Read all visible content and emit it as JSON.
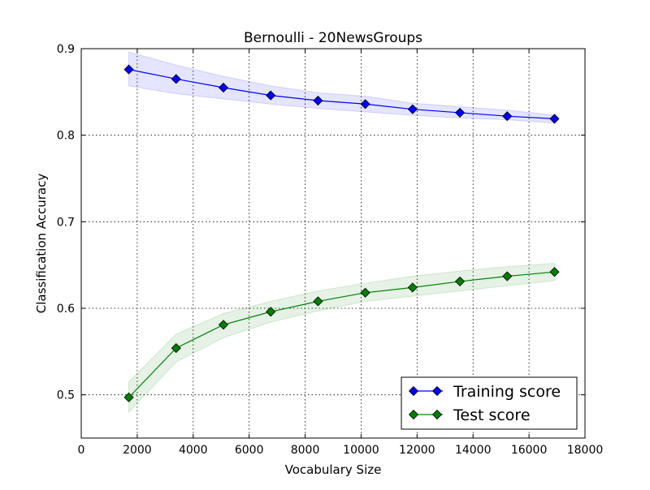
{
  "chart_data": {
    "type": "line",
    "title": "Bernoulli - 20NewsGroups",
    "xlabel": "Vocabulary Size",
    "ylabel": "Classification Accuracy",
    "xlim": [
      0,
      18000
    ],
    "ylim": [
      0.45,
      0.9
    ],
    "xticks": [
      0,
      2000,
      4000,
      6000,
      8000,
      10000,
      12000,
      14000,
      16000,
      18000
    ],
    "yticks": [
      0.5,
      0.6,
      0.7,
      0.8,
      0.9
    ],
    "ytick_labels": [
      "0.5",
      "0.6",
      "0.7",
      "0.8",
      "0.9"
    ],
    "grid": true,
    "legend_position": "bottom-right",
    "x": [
      1700,
      3390,
      5080,
      6770,
      8460,
      10150,
      11840,
      13530,
      15220,
      16910
    ],
    "series": [
      {
        "name": "Training score",
        "color": "#0000ff",
        "band_color": "#0000ff",
        "marker": "diamond",
        "values": [
          0.876,
          0.865,
          0.855,
          0.846,
          0.84,
          0.836,
          0.83,
          0.826,
          0.822,
          0.819
        ],
        "upper": [
          0.896,
          0.881,
          0.868,
          0.857,
          0.849,
          0.845,
          0.837,
          0.833,
          0.829,
          0.823
        ],
        "lower": [
          0.857,
          0.848,
          0.842,
          0.836,
          0.831,
          0.827,
          0.823,
          0.82,
          0.818,
          0.814
        ]
      },
      {
        "name": "Test score",
        "color": "#008000",
        "band_color": "#008000",
        "marker": "diamond",
        "values": [
          0.497,
          0.554,
          0.581,
          0.596,
          0.608,
          0.618,
          0.624,
          0.631,
          0.637,
          0.642
        ],
        "upper": [
          0.515,
          0.57,
          0.594,
          0.608,
          0.62,
          0.629,
          0.637,
          0.643,
          0.648,
          0.652
        ],
        "lower": [
          0.48,
          0.538,
          0.566,
          0.584,
          0.597,
          0.608,
          0.614,
          0.62,
          0.626,
          0.632
        ]
      }
    ]
  }
}
